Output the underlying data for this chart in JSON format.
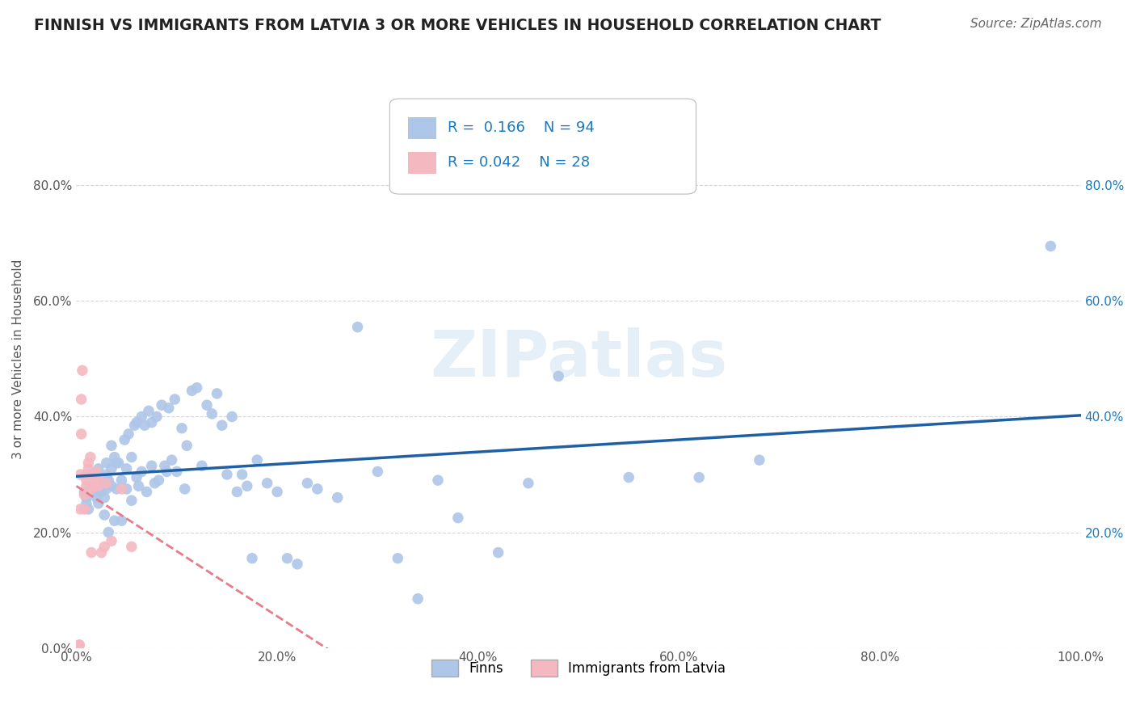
{
  "title": "FINNISH VS IMMIGRANTS FROM LATVIA 3 OR MORE VEHICLES IN HOUSEHOLD CORRELATION CHART",
  "source": "Source: ZipAtlas.com",
  "ylabel": "3 or more Vehicles in Household",
  "finn_R": "0.166",
  "finn_N": "94",
  "latvia_R": "0.042",
  "latvia_N": "28",
  "xlim": [
    0.0,
    1.0
  ],
  "ylim": [
    0.0,
    1.0
  ],
  "xticks": [
    0.0,
    0.2,
    0.4,
    0.6,
    0.8,
    1.0
  ],
  "yticks": [
    0.0,
    0.2,
    0.4,
    0.6,
    0.8
  ],
  "xticklabels": [
    "0.0%",
    "20.0%",
    "40.0%",
    "60.0%",
    "80.0%",
    "100.0%"
  ],
  "yticklabels": [
    "0.0%",
    "20.0%",
    "40.0%",
    "60.0%",
    "80.0%"
  ],
  "right_yticklabels": [
    "20.0%",
    "40.0%",
    "60.0%",
    "80.0%"
  ],
  "right_yticks": [
    0.2,
    0.4,
    0.6,
    0.8
  ],
  "background_color": "#ffffff",
  "finn_color": "#aec6e8",
  "latvia_color": "#f4b8c1",
  "finn_line_color": "#1f5fa6",
  "latvia_line_color": "#e87a8a",
  "grid_color": "#cccccc",
  "title_color": "#222222",
  "source_color": "#666666",
  "legend_color": "#1a7abf",
  "watermark": "ZIPatlas",
  "finns_x": [
    0.008,
    0.01,
    0.01,
    0.012,
    0.015,
    0.018,
    0.02,
    0.02,
    0.022,
    0.022,
    0.025,
    0.025,
    0.025,
    0.028,
    0.028,
    0.03,
    0.03,
    0.03,
    0.032,
    0.032,
    0.035,
    0.035,
    0.035,
    0.038,
    0.038,
    0.04,
    0.04,
    0.042,
    0.045,
    0.045,
    0.048,
    0.05,
    0.05,
    0.052,
    0.055,
    0.055,
    0.058,
    0.06,
    0.06,
    0.062,
    0.065,
    0.065,
    0.068,
    0.07,
    0.072,
    0.075,
    0.075,
    0.078,
    0.08,
    0.082,
    0.085,
    0.088,
    0.09,
    0.092,
    0.095,
    0.098,
    0.1,
    0.105,
    0.108,
    0.11,
    0.115,
    0.12,
    0.125,
    0.13,
    0.135,
    0.14,
    0.145,
    0.15,
    0.155,
    0.16,
    0.165,
    0.17,
    0.175,
    0.18,
    0.19,
    0.2,
    0.21,
    0.22,
    0.23,
    0.24,
    0.26,
    0.28,
    0.3,
    0.32,
    0.34,
    0.36,
    0.38,
    0.42,
    0.45,
    0.48,
    0.55,
    0.62,
    0.68,
    0.97
  ],
  "finns_y": [
    0.27,
    0.26,
    0.25,
    0.24,
    0.3,
    0.28,
    0.27,
    0.26,
    0.31,
    0.25,
    0.29,
    0.28,
    0.27,
    0.26,
    0.23,
    0.32,
    0.3,
    0.275,
    0.29,
    0.2,
    0.35,
    0.31,
    0.28,
    0.22,
    0.33,
    0.32,
    0.275,
    0.32,
    0.29,
    0.22,
    0.36,
    0.31,
    0.275,
    0.37,
    0.33,
    0.255,
    0.385,
    0.295,
    0.39,
    0.28,
    0.4,
    0.305,
    0.385,
    0.27,
    0.41,
    0.315,
    0.39,
    0.285,
    0.4,
    0.29,
    0.42,
    0.315,
    0.305,
    0.415,
    0.325,
    0.43,
    0.305,
    0.38,
    0.275,
    0.35,
    0.445,
    0.45,
    0.315,
    0.42,
    0.405,
    0.44,
    0.385,
    0.3,
    0.4,
    0.27,
    0.3,
    0.28,
    0.155,
    0.325,
    0.285,
    0.27,
    0.155,
    0.145,
    0.285,
    0.275,
    0.26,
    0.555,
    0.305,
    0.155,
    0.085,
    0.29,
    0.225,
    0.165,
    0.285,
    0.47,
    0.295,
    0.295,
    0.325,
    0.695
  ],
  "latvia_x": [
    0.003,
    0.003,
    0.004,
    0.004,
    0.005,
    0.005,
    0.006,
    0.008,
    0.008,
    0.01,
    0.01,
    0.01,
    0.012,
    0.012,
    0.014,
    0.015,
    0.015,
    0.018,
    0.018,
    0.02,
    0.022,
    0.022,
    0.025,
    0.028,
    0.03,
    0.035,
    0.045,
    0.055
  ],
  "latvia_y": [
    0.005,
    0.005,
    0.24,
    0.3,
    0.37,
    0.43,
    0.48,
    0.24,
    0.265,
    0.28,
    0.29,
    0.3,
    0.31,
    0.32,
    0.33,
    0.165,
    0.275,
    0.28,
    0.295,
    0.305,
    0.28,
    0.295,
    0.165,
    0.175,
    0.285,
    0.185,
    0.275,
    0.175
  ]
}
